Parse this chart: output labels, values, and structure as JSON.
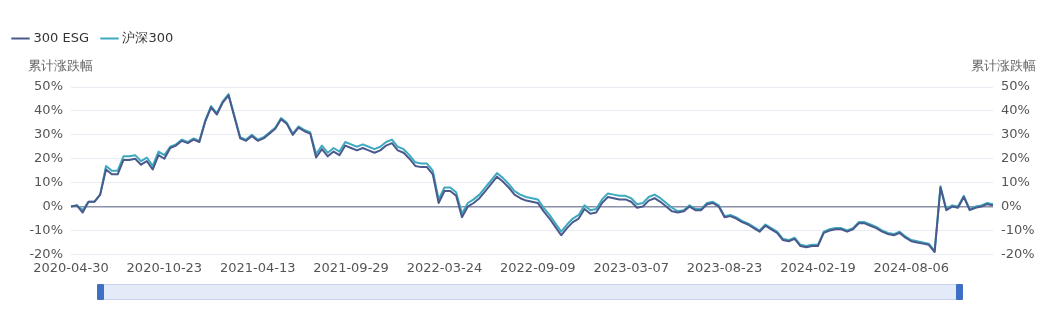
{
  "chart_data": {
    "type": "line",
    "categories": [
      "2020-04-30",
      null,
      null,
      null,
      null,
      null,
      null,
      null,
      null,
      null,
      null,
      null,
      null,
      null,
      null,
      null,
      "2020-10-23",
      null,
      null,
      null,
      null,
      null,
      null,
      null,
      null,
      null,
      null,
      null,
      null,
      null,
      null,
      null,
      "2021-04-13",
      null,
      null,
      null,
      null,
      null,
      null,
      null,
      null,
      null,
      null,
      null,
      null,
      null,
      null,
      null,
      "2021-09-29",
      null,
      null,
      null,
      null,
      null,
      null,
      null,
      null,
      null,
      null,
      null,
      null,
      null,
      null,
      null,
      "2022-03-24",
      null,
      null,
      null,
      null,
      null,
      null,
      null,
      null,
      null,
      null,
      null,
      null,
      null,
      null,
      null,
      "2022-09-09",
      null,
      null,
      null,
      null,
      null,
      null,
      null,
      null,
      null,
      null,
      null,
      null,
      null,
      null,
      null,
      "2023-03-07",
      null,
      null,
      null,
      null,
      null,
      null,
      null,
      null,
      null,
      null,
      null,
      null,
      null,
      null,
      null,
      "2023-08-23",
      null,
      null,
      null,
      null,
      null,
      null,
      null,
      null,
      null,
      null,
      null,
      null,
      null,
      null,
      null,
      "2024-02-19",
      null,
      null,
      null,
      null,
      null,
      null,
      null,
      null,
      null,
      null,
      null,
      null,
      null,
      null,
      null,
      "2024-08-06",
      null,
      null,
      null,
      null,
      null,
      null,
      null,
      null,
      null,
      null,
      null,
      null,
      null,
      null
    ],
    "series": [
      {
        "name": "300 ESG",
        "color": "#4a5a8c",
        "values": [
          0,
          0.5,
          -2.5,
          2,
          2,
          5,
          15.5,
          13.5,
          13.5,
          19.5,
          19.5,
          20,
          17.5,
          19,
          15.5,
          21.5,
          20,
          24.5,
          25.5,
          27.5,
          26.5,
          28,
          27,
          35.5,
          41.5,
          38.5,
          43.5,
          46.5,
          37.5,
          28.5,
          27.5,
          29.5,
          27.5,
          28.5,
          30.5,
          32.5,
          36.5,
          34.5,
          30,
          33,
          31.5,
          30.5,
          20.5,
          24,
          21,
          23,
          21.5,
          25.5,
          24.5,
          23.5,
          24.5,
          23.5,
          22.5,
          23.5,
          25.5,
          26.5,
          23.5,
          22.5,
          20,
          17,
          16.5,
          16.5,
          13.5,
          1.5,
          6.5,
          6.5,
          4.5,
          -4.5,
          0,
          1.5,
          3.5,
          6.5,
          9.5,
          12.5,
          10.5,
          8,
          5,
          3.5,
          2.5,
          2,
          1.5,
          -2,
          -5,
          -8.5,
          -12,
          -9,
          -6.5,
          -5,
          -1,
          -3,
          -2.5,
          1.5,
          4,
          3.5,
          3,
          3,
          2,
          -0.5,
          0,
          2.5,
          3.5,
          2,
          0,
          -2,
          -2.5,
          -2,
          0,
          -1.5,
          -1.5,
          1,
          1.5,
          0,
          -4.5,
          -4,
          -5,
          -6.5,
          -7.5,
          -9,
          -10.5,
          -8,
          -9.5,
          -11,
          -14,
          -14.5,
          -13.5,
          -16.5,
          -17,
          -16.5,
          -16.5,
          -11,
          -10,
          -9.5,
          -9.5,
          -10.5,
          -9.5,
          -7,
          -7,
          -8,
          -9,
          -10.5,
          -11.5,
          -12,
          -11,
          -13,
          -14.5,
          -15,
          -15.5,
          -16,
          -19,
          8,
          -1.5,
          0,
          -0.5,
          4,
          -1.5,
          -0.5,
          0,
          1,
          0.5
        ]
      },
      {
        "name": "沪深300",
        "color": "#3eaabf",
        "values": [
          0,
          0.5,
          -1.5,
          2,
          2,
          5,
          17,
          15,
          15,
          21,
          21,
          21.5,
          19,
          20.5,
          17,
          23,
          21.5,
          25,
          26,
          28,
          27,
          28.5,
          27.5,
          36,
          42,
          39,
          44,
          47,
          38,
          29,
          28,
          30,
          28,
          29,
          31,
          33,
          37,
          35,
          30.5,
          33.5,
          32,
          31,
          22,
          25.5,
          22.5,
          24.5,
          23,
          27,
          26,
          25,
          26,
          25,
          24,
          25,
          27,
          28,
          25,
          24,
          21.5,
          18.5,
          18,
          18,
          15,
          3,
          8,
          8,
          6,
          -3,
          1.5,
          3,
          5,
          8,
          11,
          14,
          12,
          9.5,
          6.5,
          5,
          4,
          3.5,
          3,
          -0.5,
          -3.5,
          -7,
          -10.5,
          -7.5,
          -5,
          -3.5,
          0.5,
          -1.5,
          -1,
          3,
          5.5,
          5,
          4.5,
          4.5,
          3.5,
          1,
          1.5,
          4,
          5,
          3.5,
          1.5,
          -0.5,
          -2,
          -1.5,
          0.5,
          -1,
          -1,
          1.5,
          2,
          0.5,
          -4,
          -3.5,
          -4.5,
          -6,
          -7,
          -8.5,
          -10,
          -7.5,
          -9,
          -10.5,
          -13.5,
          -14,
          -13,
          -16,
          -16.5,
          -16,
          -16,
          -10.5,
          -9.5,
          -9,
          -9,
          -10,
          -9,
          -6.5,
          -6.5,
          -7.5,
          -8.5,
          -10,
          -11,
          -11.5,
          -10.5,
          -12.5,
          -14,
          -14.5,
          -15,
          -15.5,
          -18.5,
          8.5,
          -1,
          0.5,
          0,
          4.5,
          -1,
          0,
          0.5,
          1.5,
          1
        ]
      }
    ],
    "ylabel": "累计涨跌幅",
    "y2label": "累计涨跌幅",
    "ylim": [
      -20,
      50
    ],
    "yticks": [
      {
        "value": -20,
        "label": "-20%"
      },
      {
        "value": -10,
        "label": "-10%"
      },
      {
        "value": 0,
        "label": "0%"
      },
      {
        "value": 10,
        "label": "10%"
      },
      {
        "value": 20,
        "label": "20%"
      },
      {
        "value": 30,
        "label": "30%"
      },
      {
        "value": 40,
        "label": "40%"
      },
      {
        "value": 50,
        "label": "50%"
      }
    ],
    "y2lim": [
      -20,
      50
    ],
    "y2ticks": [
      {
        "value": -20,
        "label": "-20%"
      },
      {
        "value": -10,
        "label": "-10%"
      },
      {
        "value": 0,
        "label": "0%"
      },
      {
        "value": 10,
        "label": "10%"
      },
      {
        "value": 20,
        "label": "20%"
      },
      {
        "value": 30,
        "label": "30%"
      },
      {
        "value": 40,
        "label": "40%"
      },
      {
        "value": 50,
        "label": "50%"
      }
    ],
    "grid": "y",
    "legend": "top left",
    "marker": "none",
    "line_style": "solid"
  }
}
